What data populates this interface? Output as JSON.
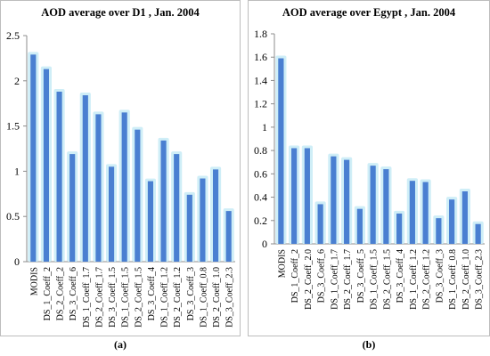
{
  "colors": {
    "bar": "#4a7fd1",
    "bar_glow": "#cfeef7",
    "axis": "#8c8c8c",
    "grid": "#d9d9d9",
    "frame": "#bdbdbd"
  },
  "panels": [
    {
      "caption": "(a)"
    },
    {
      "caption": "(b)"
    }
  ],
  "chart_data": [
    {
      "type": "bar",
      "title": "AOD average over D1 , Jan. 2004",
      "xlabel": "",
      "ylabel": "",
      "ylim": [
        0,
        2.5
      ],
      "yticks": [
        "0",
        "0.5",
        "1",
        "1.5",
        "2",
        "2.5"
      ],
      "grid": false,
      "categories": [
        "MODIS",
        "DS_1_Coeff_2",
        "DS_2_Coeff_2",
        "DS_3_Coeff_6",
        "DS_1_Coeff_1.7",
        "DS_2_Coeff_1.7",
        "DS_3_Coeff_1.5",
        "DS_1_Coeff_1.5",
        "DS_2_Coeff_1.5",
        "DS_3_Coeff_4",
        "DS_1_Coeff_1.2",
        "DS_2_Coeff_1.2",
        "DS_3_Coeff_3",
        "DS_1_Coeff_0.8",
        "DS_2_Coeff_1.0",
        "DS_3_Coeff_2.3"
      ],
      "values": [
        2.29,
        2.13,
        1.88,
        1.19,
        1.84,
        1.63,
        1.05,
        1.65,
        1.46,
        0.89,
        1.34,
        1.19,
        0.74,
        0.92,
        1.02,
        0.56
      ]
    },
    {
      "type": "bar",
      "title": "AOD average over Egypt , Jan. 2004",
      "xlabel": "",
      "ylabel": "",
      "ylim": [
        0,
        1.8
      ],
      "yticks": [
        "0",
        "0.2",
        "0.4",
        "0.6",
        "0.8",
        "1",
        "1.2",
        "1.4",
        "1.6",
        "1.8"
      ],
      "grid": false,
      "categories": [
        "MODIS",
        "DS_1_Coeff_2",
        "DS_2_Coeff_2.0",
        "DS_3_Coeff_6",
        "DS_1_Coeff_1.7",
        "DS_2_Coeff_1.7",
        "DS_3_Coeff_5",
        "DS_1_Coeff_1.5",
        "DS_2_Coeff_1.5",
        "DS_3_Coeff_4",
        "DS_1_Coeff_1.2",
        "DS_2_Coeff_1.2",
        "DS_3_Coeff_3",
        "DS_1_Coeff_0.8",
        "DS_2_Coeff_1.0",
        "DS_3_Coeff_2.3"
      ],
      "values": [
        1.59,
        0.82,
        0.82,
        0.34,
        0.75,
        0.72,
        0.3,
        0.67,
        0.64,
        0.26,
        0.54,
        0.53,
        0.22,
        0.38,
        0.45,
        0.17
      ]
    }
  ]
}
